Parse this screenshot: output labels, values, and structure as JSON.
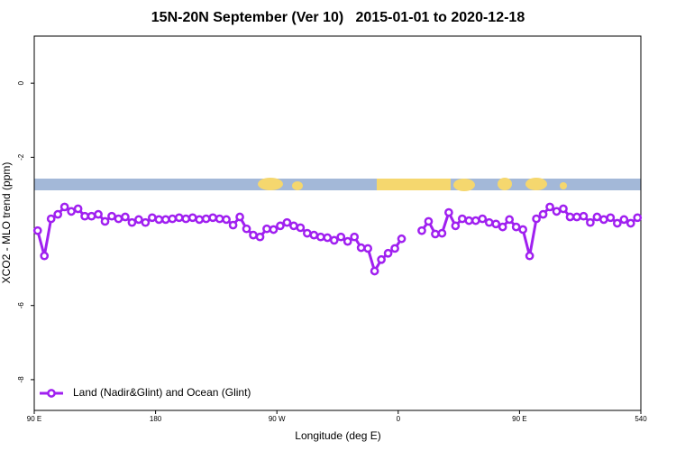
{
  "chart_data": {
    "type": "line",
    "title": "15N-20N September (Ver 10)   2015-01-01 to 2020-12-18",
    "x_label": "Longitude (deg E)",
    "y_label": "XCO2 - MLO trend (ppm)",
    "xlim": [
      90,
      540
    ],
    "ylim": [
      -8.83,
      1.27
    ],
    "xticks": [
      {
        "value": 90,
        "label": "90 E"
      },
      180,
      {
        "value": 270,
        "label": "90 W"
      },
      {
        "value": 360,
        "label": "0"
      },
      {
        "value": 450,
        "label": "90 E"
      },
      540
    ],
    "yticks": [
      0,
      -2,
      -6,
      -8
    ],
    "legend": "bottomleft",
    "x": [
      92.5,
      97.5,
      102.5,
      107.5,
      112.5,
      117.5,
      122.5,
      127.5,
      132.5,
      137.5,
      142.5,
      147.5,
      152.5,
      157.5,
      162.5,
      167.5,
      172.5,
      177.5,
      182.5,
      187.5,
      192.5,
      197.5,
      202.5,
      207.5,
      212.5,
      217.5,
      222.5,
      227.5,
      232.5,
      237.5,
      242.5,
      247.5,
      252.5,
      257.5,
      262.5,
      267.5,
      272.5,
      277.5,
      282.5,
      287.5,
      292.5,
      297.5,
      302.5,
      307.5,
      312.5,
      317.5,
      322.5,
      327.5,
      332.5,
      337.5,
      342.5,
      347.5,
      352.5,
      357.5,
      362.5,
      367.5,
      372.5,
      377.5,
      382.5,
      387.5,
      392.5,
      397.5,
      402.5,
      407.5,
      412.5,
      417.5,
      422.5,
      427.5,
      432.5,
      437.5,
      442.5,
      447.5,
      452.5,
      457.5,
      462.5,
      467.5,
      472.5,
      477.5,
      482.5,
      487.5,
      492.5,
      497.5,
      502.5,
      507.5,
      512.5,
      517.5,
      522.5,
      527.5,
      532.5,
      537.5
    ],
    "series": [
      {
        "name": "Land (Nadir&Glint) and Ocean (Glint)",
        "color": "#a020f0",
        "values": [
          -3.98,
          -4.66,
          -3.66,
          -3.54,
          -3.34,
          -3.46,
          -3.39,
          -3.59,
          -3.59,
          -3.54,
          -3.73,
          -3.59,
          -3.66,
          -3.61,
          -3.76,
          -3.68,
          -3.76,
          -3.63,
          -3.68,
          -3.68,
          -3.66,
          -3.63,
          -3.66,
          -3.63,
          -3.68,
          -3.66,
          -3.63,
          -3.66,
          -3.68,
          -3.83,
          -3.61,
          -3.93,
          -4.1,
          -4.15,
          -3.93,
          -3.95,
          -3.85,
          -3.76,
          -3.85,
          -3.9,
          -4.05,
          -4.1,
          -4.15,
          -4.17,
          -4.24,
          -4.15,
          -4.27,
          -4.15,
          -4.44,
          -4.46,
          -5.07,
          -4.76,
          -4.59,
          -4.46,
          -4.2,
          null,
          null,
          -3.98,
          -3.73,
          -4.07,
          -4.05,
          -3.49,
          -3.85,
          -3.66,
          -3.71,
          -3.71,
          -3.66,
          -3.76,
          -3.8,
          -3.88,
          -3.68,
          -3.88,
          -3.95,
          -4.66,
          -3.66,
          -3.54,
          -3.34,
          -3.46,
          -3.39,
          -3.61,
          -3.61,
          -3.59,
          -3.76,
          -3.61,
          -3.68,
          -3.63,
          -3.78,
          -3.68,
          -3.78,
          -3.63
        ]
      }
    ]
  }
}
